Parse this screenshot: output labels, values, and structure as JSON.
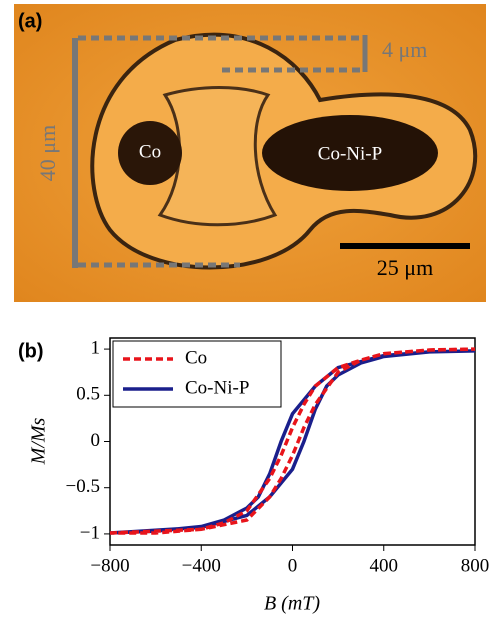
{
  "panel_a": {
    "panel_label": "(a)",
    "labels": [
      "Co",
      "Co-Ni-P"
    ],
    "scale_labels": [
      "40 μm",
      "4 μm",
      "25 μm"
    ]
  },
  "chart_data": {
    "type": "line",
    "panel_label": "(b)",
    "xlabel": "B (mT)",
    "ylabel": "M/Ms",
    "xlim": [
      -800,
      800
    ],
    "ylim": [
      -1.12,
      1.12
    ],
    "xticks": [
      {
        "value": -800,
        "label": "−800"
      },
      {
        "value": -400,
        "label": "−400"
      },
      0,
      400,
      800
    ],
    "yticks": [
      {
        "value": -1,
        "label": "−1"
      },
      {
        "value": -0.5,
        "label": "−0.5"
      },
      0,
      0.5,
      1
    ],
    "legend": "upper left",
    "series": [
      {
        "name": "Co",
        "color": "#e8141b",
        "style": "dashed",
        "x": [
          -800,
          -400,
          -200,
          -100,
          -50,
          0,
          25,
          50,
          100,
          200,
          300,
          400,
          600,
          800,
          600,
          400,
          300,
          200,
          100,
          50,
          0,
          -25,
          -50,
          -100,
          -200,
          -300,
          -400,
          -600,
          -800
        ],
        "values": [
          -0.99,
          -0.95,
          -0.85,
          -0.6,
          -0.4,
          -0.15,
          0,
          0.15,
          0.4,
          0.75,
          0.88,
          0.95,
          0.99,
          1.0,
          0.99,
          0.95,
          0.88,
          0.8,
          0.6,
          0.4,
          0.15,
          0,
          -0.15,
          -0.4,
          -0.75,
          -0.88,
          -0.95,
          -0.99,
          -0.99
        ]
      },
      {
        "name": "Co-Ni-P",
        "color": "#1a1f8c",
        "style": "solid",
        "x": [
          -800,
          -400,
          -200,
          -100,
          0,
          50,
          100,
          150,
          200,
          300,
          400,
          600,
          800,
          600,
          400,
          200,
          100,
          0,
          -50,
          -100,
          -150,
          -200,
          -300,
          -400,
          -600,
          -800
        ],
        "values": [
          -0.99,
          -0.93,
          -0.8,
          -0.6,
          -0.3,
          0,
          0.35,
          0.6,
          0.72,
          0.85,
          0.92,
          0.97,
          0.98,
          0.97,
          0.93,
          0.8,
          0.6,
          0.3,
          0,
          -0.35,
          -0.6,
          -0.72,
          -0.85,
          -0.92,
          -0.97,
          -0.99
        ]
      }
    ]
  }
}
